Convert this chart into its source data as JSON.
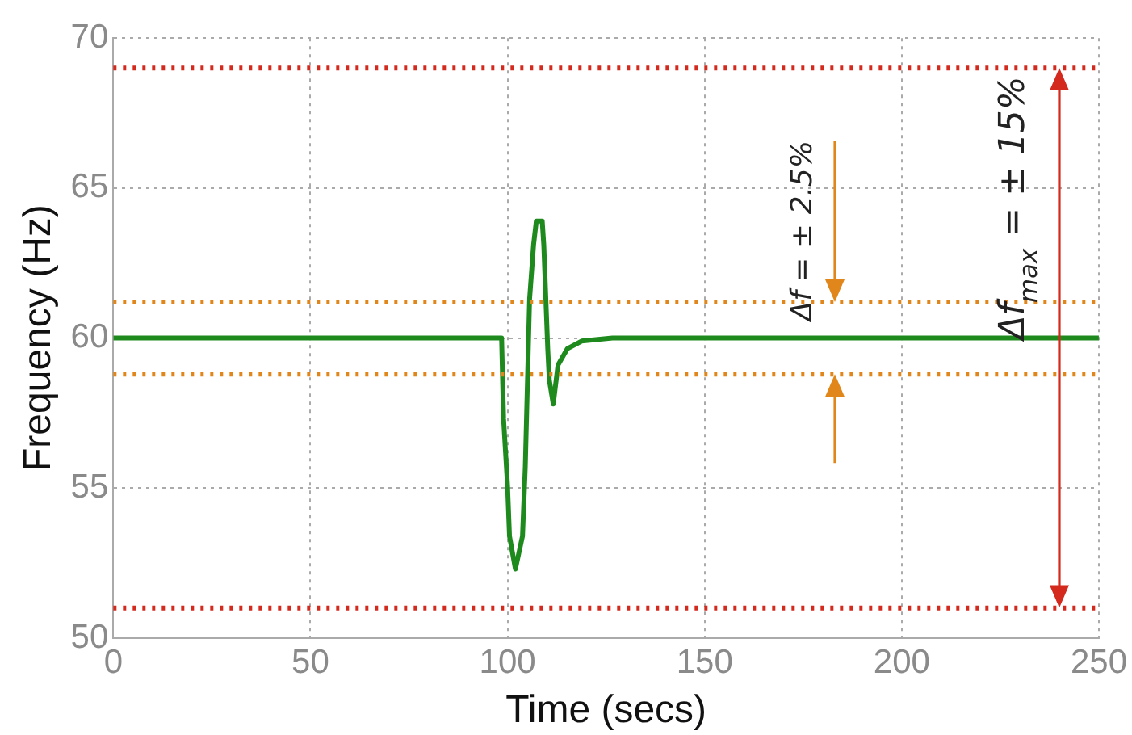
{
  "chart_data": {
    "type": "line",
    "xlabel": "Time (secs)",
    "ylabel": "Frequency (Hz)",
    "x": [
      0,
      98.5,
      99,
      100,
      100.5,
      102,
      103.8,
      104.5,
      105.6,
      106.6,
      107.3,
      108.8,
      109.2,
      110.2,
      110.6,
      111.6,
      112.8,
      115.2,
      118.8,
      126.6,
      250
    ],
    "series": [
      {
        "color": "#1e8a1e",
        "values": [
          60,
          60,
          57.3,
          55.1,
          53.4,
          52.3,
          53.4,
          55.7,
          61.3,
          63.1,
          63.9,
          63.9,
          63.1,
          59.65,
          58.6,
          57.8,
          59.1,
          59.65,
          59.9,
          60,
          60
        ]
      }
    ],
    "xlim": [
      0,
      250
    ],
    "xticks": [
      0,
      50,
      100,
      150,
      200,
      250
    ],
    "ylim": [
      50,
      70
    ],
    "yticks": [
      50,
      55,
      60,
      65,
      70
    ],
    "grid": true,
    "legend": false,
    "marker": "none",
    "line_style": "solid",
    "ref_lines": [
      {
        "axis": "y",
        "value": 69,
        "color": "#d42a1e",
        "line_style": "dotted"
      },
      {
        "axis": "y",
        "value": 61.2,
        "color": "#e0861a",
        "line_style": "dotted"
      },
      {
        "axis": "y",
        "value": 58.8,
        "color": "#e0861a",
        "line_style": "dotted"
      },
      {
        "axis": "y",
        "value": 51,
        "color": "#d42a1e",
        "line_style": "dotted"
      }
    ],
    "annotations": [
      "Δf = ± 2.5%",
      "Δf$_{max}$ = ± 15%"
    ]
  }
}
